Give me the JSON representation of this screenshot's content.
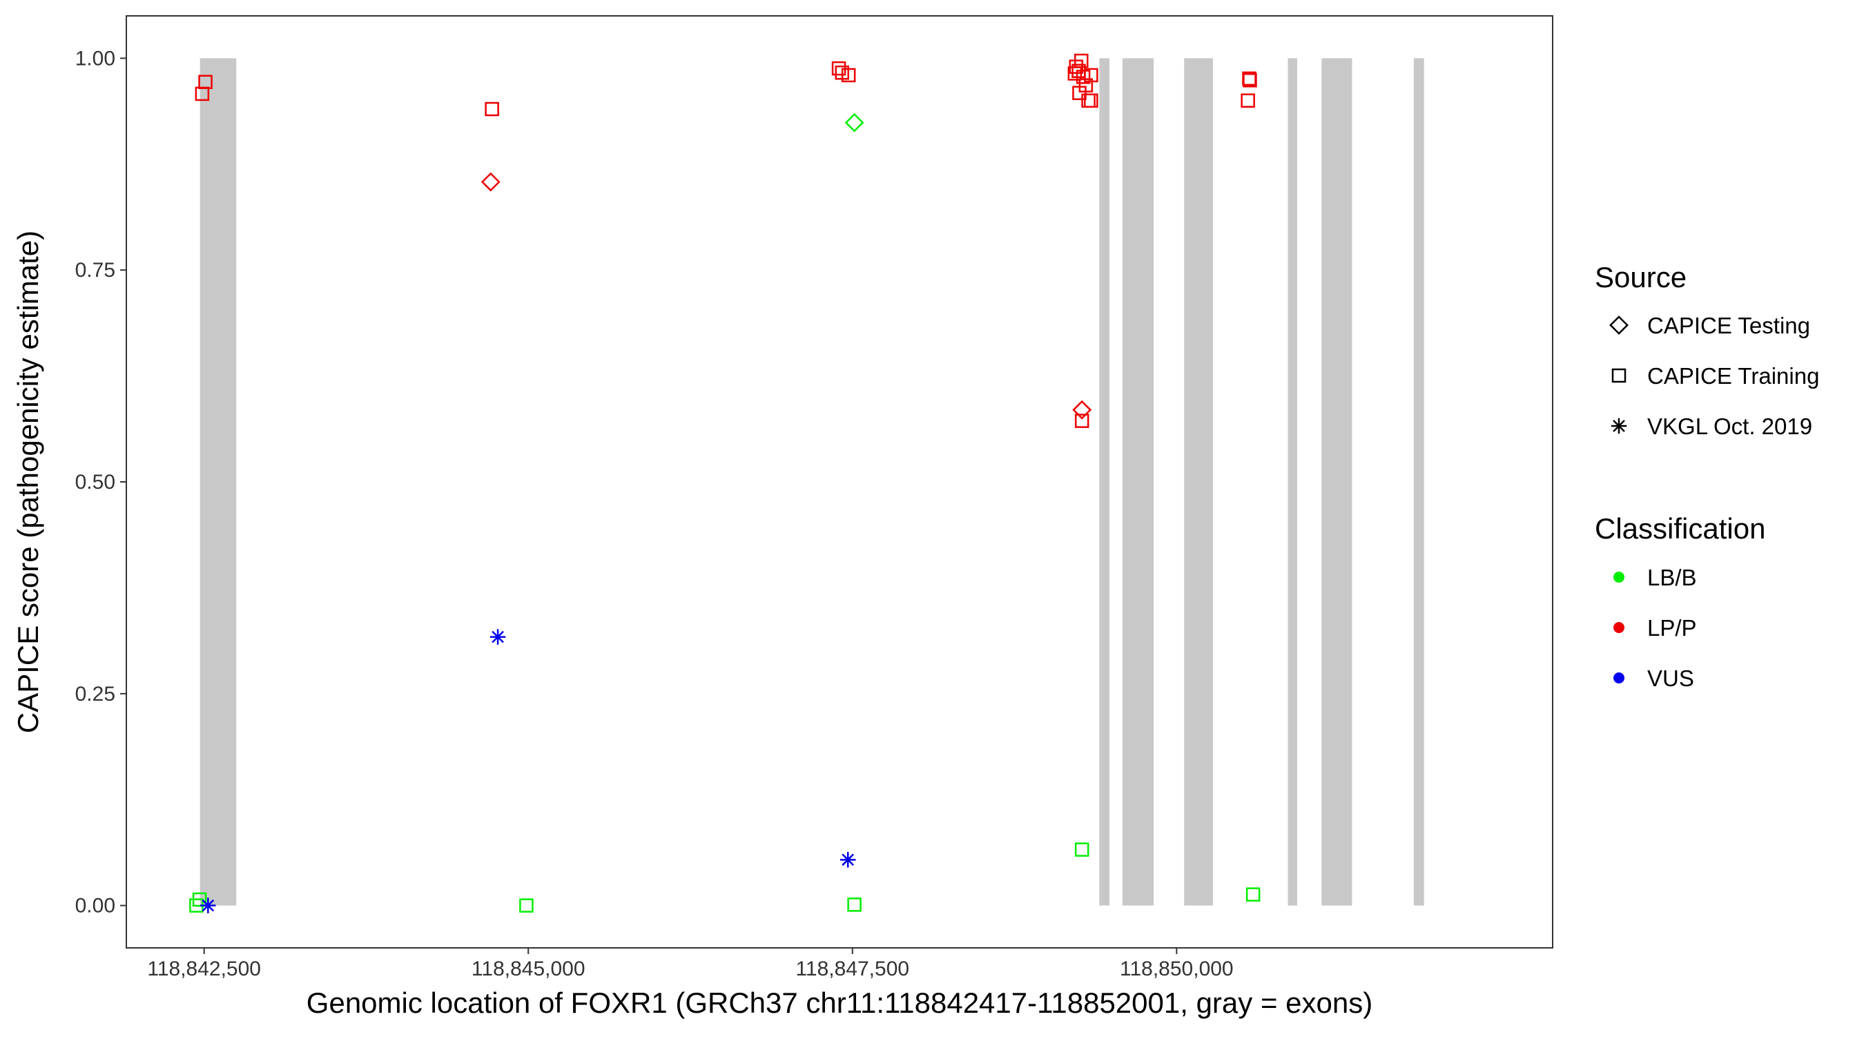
{
  "chart_data": {
    "type": "scatter",
    "xlabel": "Genomic location of FOXR1 (GRCh37 chr11:118842417-118852001, gray = exons)",
    "ylabel": "CAPICE score (pathogenicity estimate)",
    "xlim": [
      118841900,
      118852900
    ],
    "ylim": [
      -0.05,
      1.05
    ],
    "x_ticks": [
      {
        "value": 118842500,
        "label": "118,842,500"
      },
      {
        "value": 118845000,
        "label": "118,845,000"
      },
      {
        "value": 118847500,
        "label": "118,847,500"
      },
      {
        "value": 118850000,
        "label": "118,850,000"
      }
    ],
    "y_ticks": [
      {
        "value": 0,
        "label": "0.00"
      },
      {
        "value": 0.25,
        "label": "0.25"
      },
      {
        "value": 0.5,
        "label": "0.50"
      },
      {
        "value": 0.75,
        "label": "0.75"
      },
      {
        "value": 1,
        "label": "1.00"
      }
    ],
    "grid": false,
    "exons": [
      [
        118842468,
        118842748
      ],
      [
        118849404,
        118849482
      ],
      [
        118849582,
        118849823
      ],
      [
        118850058,
        118850280
      ],
      [
        118850858,
        118850930
      ],
      [
        118851118,
        118851353
      ],
      [
        118851829,
        118851908
      ]
    ],
    "exon_color": "#c8c8c8",
    "legend_position": "right",
    "source_legend": {
      "title": "Source",
      "items": [
        {
          "label": "CAPICE Testing",
          "shape": "diamond"
        },
        {
          "label": "CAPICE Training",
          "shape": "square"
        },
        {
          "label": "VKGL Oct. 2019",
          "shape": "asterisk"
        }
      ]
    },
    "classification_legend": {
      "title": "Classification",
      "items": [
        {
          "label": "LB/B",
          "color": "#00ee00"
        },
        {
          "label": "LP/P",
          "color": "#ee0000"
        },
        {
          "label": "VUS",
          "color": "#0000ee"
        }
      ]
    },
    "points": [
      {
        "x": 118842485,
        "y": 0.958,
        "shape": "square",
        "class": "LP/P"
      },
      {
        "x": 118842510,
        "y": 0.972,
        "shape": "square",
        "class": "LP/P"
      },
      {
        "x": 118842440,
        "y": 0.0,
        "shape": "square",
        "class": "LB/B"
      },
      {
        "x": 118842465,
        "y": 0.007,
        "shape": "square",
        "class": "LB/B"
      },
      {
        "x": 118842530,
        "y": 0.0,
        "shape": "asterisk",
        "class": "VUS"
      },
      {
        "x": 118844720,
        "y": 0.94,
        "shape": "square",
        "class": "LP/P"
      },
      {
        "x": 118844710,
        "y": 0.854,
        "shape": "diamond",
        "class": "LP/P"
      },
      {
        "x": 118844765,
        "y": 0.317,
        "shape": "asterisk",
        "class": "VUS"
      },
      {
        "x": 118844985,
        "y": 0.0,
        "shape": "square",
        "class": "LB/B"
      },
      {
        "x": 118847395,
        "y": 0.988,
        "shape": "square",
        "class": "LP/P"
      },
      {
        "x": 118847420,
        "y": 0.983,
        "shape": "square",
        "class": "LP/P"
      },
      {
        "x": 118847470,
        "y": 0.98,
        "shape": "square",
        "class": "LP/P"
      },
      {
        "x": 118847515,
        "y": 0.924,
        "shape": "diamond",
        "class": "LB/B"
      },
      {
        "x": 118847465,
        "y": 0.054,
        "shape": "asterisk",
        "class": "VUS"
      },
      {
        "x": 118847515,
        "y": 0.001,
        "shape": "square",
        "class": "LB/B"
      },
      {
        "x": 118849225,
        "y": 0.99,
        "shape": "square",
        "class": "LP/P"
      },
      {
        "x": 118849245,
        "y": 0.985,
        "shape": "square",
        "class": "LP/P"
      },
      {
        "x": 118849265,
        "y": 0.997,
        "shape": "square",
        "class": "LP/P"
      },
      {
        "x": 118849215,
        "y": 0.982,
        "shape": "square",
        "class": "LP/P"
      },
      {
        "x": 118849280,
        "y": 0.978,
        "shape": "square",
        "class": "LP/P"
      },
      {
        "x": 118849340,
        "y": 0.98,
        "shape": "square",
        "class": "LP/P"
      },
      {
        "x": 118849300,
        "y": 0.968,
        "shape": "square",
        "class": "LP/P"
      },
      {
        "x": 118849250,
        "y": 0.959,
        "shape": "square",
        "class": "LP/P"
      },
      {
        "x": 118849320,
        "y": 0.95,
        "shape": "square",
        "class": "LP/P"
      },
      {
        "x": 118849340,
        "y": 0.95,
        "shape": "square",
        "class": "LP/P"
      },
      {
        "x": 118849270,
        "y": 0.585,
        "shape": "diamond",
        "class": "LP/P"
      },
      {
        "x": 118849270,
        "y": 0.572,
        "shape": "square",
        "class": "LP/P"
      },
      {
        "x": 118849270,
        "y": 0.066,
        "shape": "square",
        "class": "LB/B"
      },
      {
        "x": 118850560,
        "y": 0.976,
        "shape": "square",
        "class": "LP/P"
      },
      {
        "x": 118850565,
        "y": 0.974,
        "shape": "square",
        "class": "LP/P"
      },
      {
        "x": 118850550,
        "y": 0.95,
        "shape": "square",
        "class": "LP/P"
      },
      {
        "x": 118850590,
        "y": 0.013,
        "shape": "square",
        "class": "LB/B"
      }
    ]
  }
}
